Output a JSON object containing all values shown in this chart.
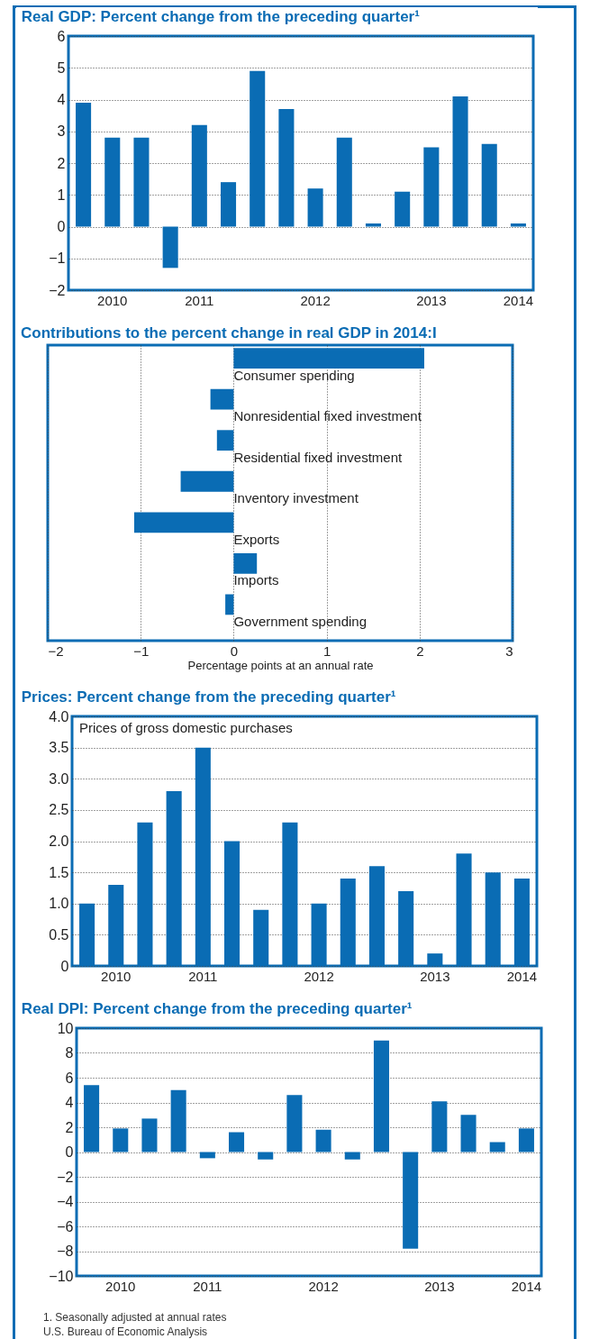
{
  "chart_data": [
    {
      "type": "bar",
      "title": "Real GDP: Percent change from the preceding quarter¹",
      "categories": [
        null,
        "2010",
        null,
        null,
        "2011",
        null,
        null,
        null,
        "2012",
        null,
        null,
        null,
        "2013",
        null,
        null,
        "2014"
      ],
      "series": [
        {
          "color": "#0a6cb4",
          "values": [
            3.9,
            2.8,
            2.8,
            -1.3,
            3.2,
            1.4,
            4.9,
            3.7,
            1.2,
            2.8,
            0.1,
            1.1,
            2.5,
            4.1,
            2.6,
            0.1
          ]
        }
      ],
      "ylim": [
        -2,
        6
      ],
      "yticks": [
        {
          "value": -2,
          "label": "−2"
        },
        {
          "value": -1,
          "label": "−1"
        },
        0,
        1,
        2,
        3,
        4,
        5,
        6
      ],
      "grid": "y"
    },
    {
      "type": "bar",
      "orientation": "horizontal",
      "title": "Contributions to the percent change in real GDP in 2014:I",
      "categories": [
        "Consumer spending",
        "Nonresidential fixed investment",
        "Residential fixed investment",
        "Inventory investment",
        "Exports",
        "Imports",
        "Government spending"
      ],
      "series": [
        {
          "color": "#0a6cb4",
          "values": [
            2.05,
            -0.25,
            -0.18,
            -0.57,
            -1.07,
            0.25,
            -0.09
          ]
        }
      ],
      "xlim": [
        -2,
        3
      ],
      "xticks": [
        {
          "value": -2,
          "label": "−2"
        },
        {
          "value": -1,
          "label": "−1"
        },
        0,
        1,
        2,
        3
      ],
      "xlabel": "Percentage points at an annual rate",
      "grid": "x",
      "tick_labels": "x"
    },
    {
      "type": "bar",
      "title": "Prices: Percent change from the preceding quarter¹",
      "categories": [
        null,
        "2010",
        null,
        null,
        "2011",
        null,
        null,
        null,
        "2012",
        null,
        null,
        null,
        "2013",
        null,
        null,
        "2014"
      ],
      "series": [
        {
          "name": "Prices of gross domestic purchases",
          "color": "#0a6cb4",
          "values": [
            1.0,
            1.3,
            2.3,
            2.8,
            3.5,
            2.0,
            0.9,
            2.3,
            1.0,
            1.4,
            1.6,
            1.2,
            0.2,
            1.8,
            1.5,
            1.4
          ]
        }
      ],
      "ylim": [
        0,
        4
      ],
      "yticks": [
        0,
        {
          "value": 0.5,
          "label": "0.5"
        },
        {
          "value": 1,
          "label": "1.0"
        },
        {
          "value": 1.5,
          "label": "1.5"
        },
        {
          "value": 2,
          "label": "2.0"
        },
        {
          "value": 2.5,
          "label": "2.5"
        },
        {
          "value": 3,
          "label": "3.0"
        },
        {
          "value": 3.5,
          "label": "3.5"
        },
        {
          "value": 4,
          "label": "4.0"
        }
      ],
      "grid": "y"
    },
    {
      "type": "bar",
      "title": "Real DPI: Percent change from the preceding quarter¹",
      "categories": [
        null,
        "2010",
        null,
        null,
        "2011",
        null,
        null,
        null,
        "2012",
        null,
        null,
        null,
        "2013",
        null,
        null,
        "2014"
      ],
      "series": [
        {
          "color": "#0a6cb4",
          "values": [
            5.4,
            1.9,
            2.7,
            5.0,
            -0.5,
            1.6,
            -0.6,
            4.6,
            1.8,
            -0.6,
            9.0,
            -7.8,
            4.1,
            3.0,
            0.8,
            1.9
          ]
        }
      ],
      "ylim": [
        -10,
        10
      ],
      "yticks": [
        {
          "value": -10,
          "label": "−10"
        },
        {
          "value": -8,
          "label": "−8"
        },
        {
          "value": -6,
          "label": "−6"
        },
        {
          "value": -4,
          "label": "−4"
        },
        {
          "value": -2,
          "label": "−2"
        },
        0,
        2,
        4,
        6,
        8,
        10
      ],
      "grid": "y",
      "annotations": [
        "1. Seasonally adjusted at annual rates",
        "U.S. Bureau of Economic Analysis"
      ]
    }
  ]
}
